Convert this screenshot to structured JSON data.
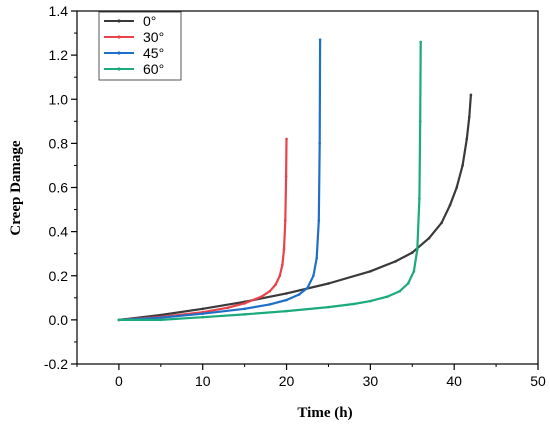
{
  "chart_data": {
    "type": "line",
    "title": "",
    "xlabel": "Time (h)",
    "ylabel": "Creep Damage",
    "xlim": [
      -5,
      50
    ],
    "ylim": [
      -0.2,
      1.4
    ],
    "xticks": [
      0,
      10,
      20,
      30,
      40,
      50
    ],
    "yticks": [
      -0.2,
      0.0,
      0.2,
      0.4,
      0.6,
      0.8,
      1.0,
      1.2,
      1.4
    ],
    "xtick_labels": [
      "0",
      "10",
      "20",
      "30",
      "40",
      "50"
    ],
    "ytick_labels": [
      "-0.2",
      "0.0",
      "0.2",
      "0.4",
      "0.6",
      "0.8",
      "1.0",
      "1.2",
      "1.4"
    ],
    "grid": false,
    "legend_position": "top-left",
    "series": [
      {
        "name": "0°",
        "color": "#3a3a3a",
        "x": [
          0,
          5,
          10,
          15,
          20,
          25,
          30,
          33,
          35,
          37,
          38.5,
          39.5,
          40.3,
          41,
          41.5,
          41.8,
          42
        ],
        "y": [
          0.0,
          0.022,
          0.05,
          0.082,
          0.12,
          0.165,
          0.22,
          0.265,
          0.305,
          0.37,
          0.44,
          0.52,
          0.6,
          0.7,
          0.82,
          0.92,
          1.02
        ]
      },
      {
        "name": "30°",
        "color": "#e8424a",
        "x": [
          0,
          5,
          10,
          13,
          15,
          17,
          18,
          18.7,
          19.2,
          19.5,
          19.7,
          19.85,
          19.95,
          20.0
        ],
        "y": [
          0.0,
          0.013,
          0.035,
          0.055,
          0.075,
          0.105,
          0.13,
          0.16,
          0.2,
          0.25,
          0.32,
          0.45,
          0.65,
          0.82
        ]
      },
      {
        "name": "45°",
        "color": "#1f6fc9",
        "x": [
          0,
          5,
          10,
          15,
          18,
          20,
          21.5,
          22.5,
          23.2,
          23.6,
          23.85,
          23.95,
          24.0
        ],
        "y": [
          0.0,
          0.01,
          0.028,
          0.05,
          0.07,
          0.09,
          0.115,
          0.145,
          0.2,
          0.28,
          0.45,
          0.8,
          1.27
        ]
      },
      {
        "name": "60°",
        "color": "#1aaa7c",
        "x": [
          0,
          5,
          10,
          15,
          20,
          25,
          28,
          30,
          32,
          33.5,
          34.5,
          35.2,
          35.6,
          35.85,
          35.95,
          36.0
        ],
        "y": [
          0.0,
          0.0,
          0.012,
          0.025,
          0.04,
          0.058,
          0.072,
          0.085,
          0.105,
          0.13,
          0.165,
          0.22,
          0.32,
          0.55,
          0.9,
          1.26
        ]
      }
    ]
  }
}
